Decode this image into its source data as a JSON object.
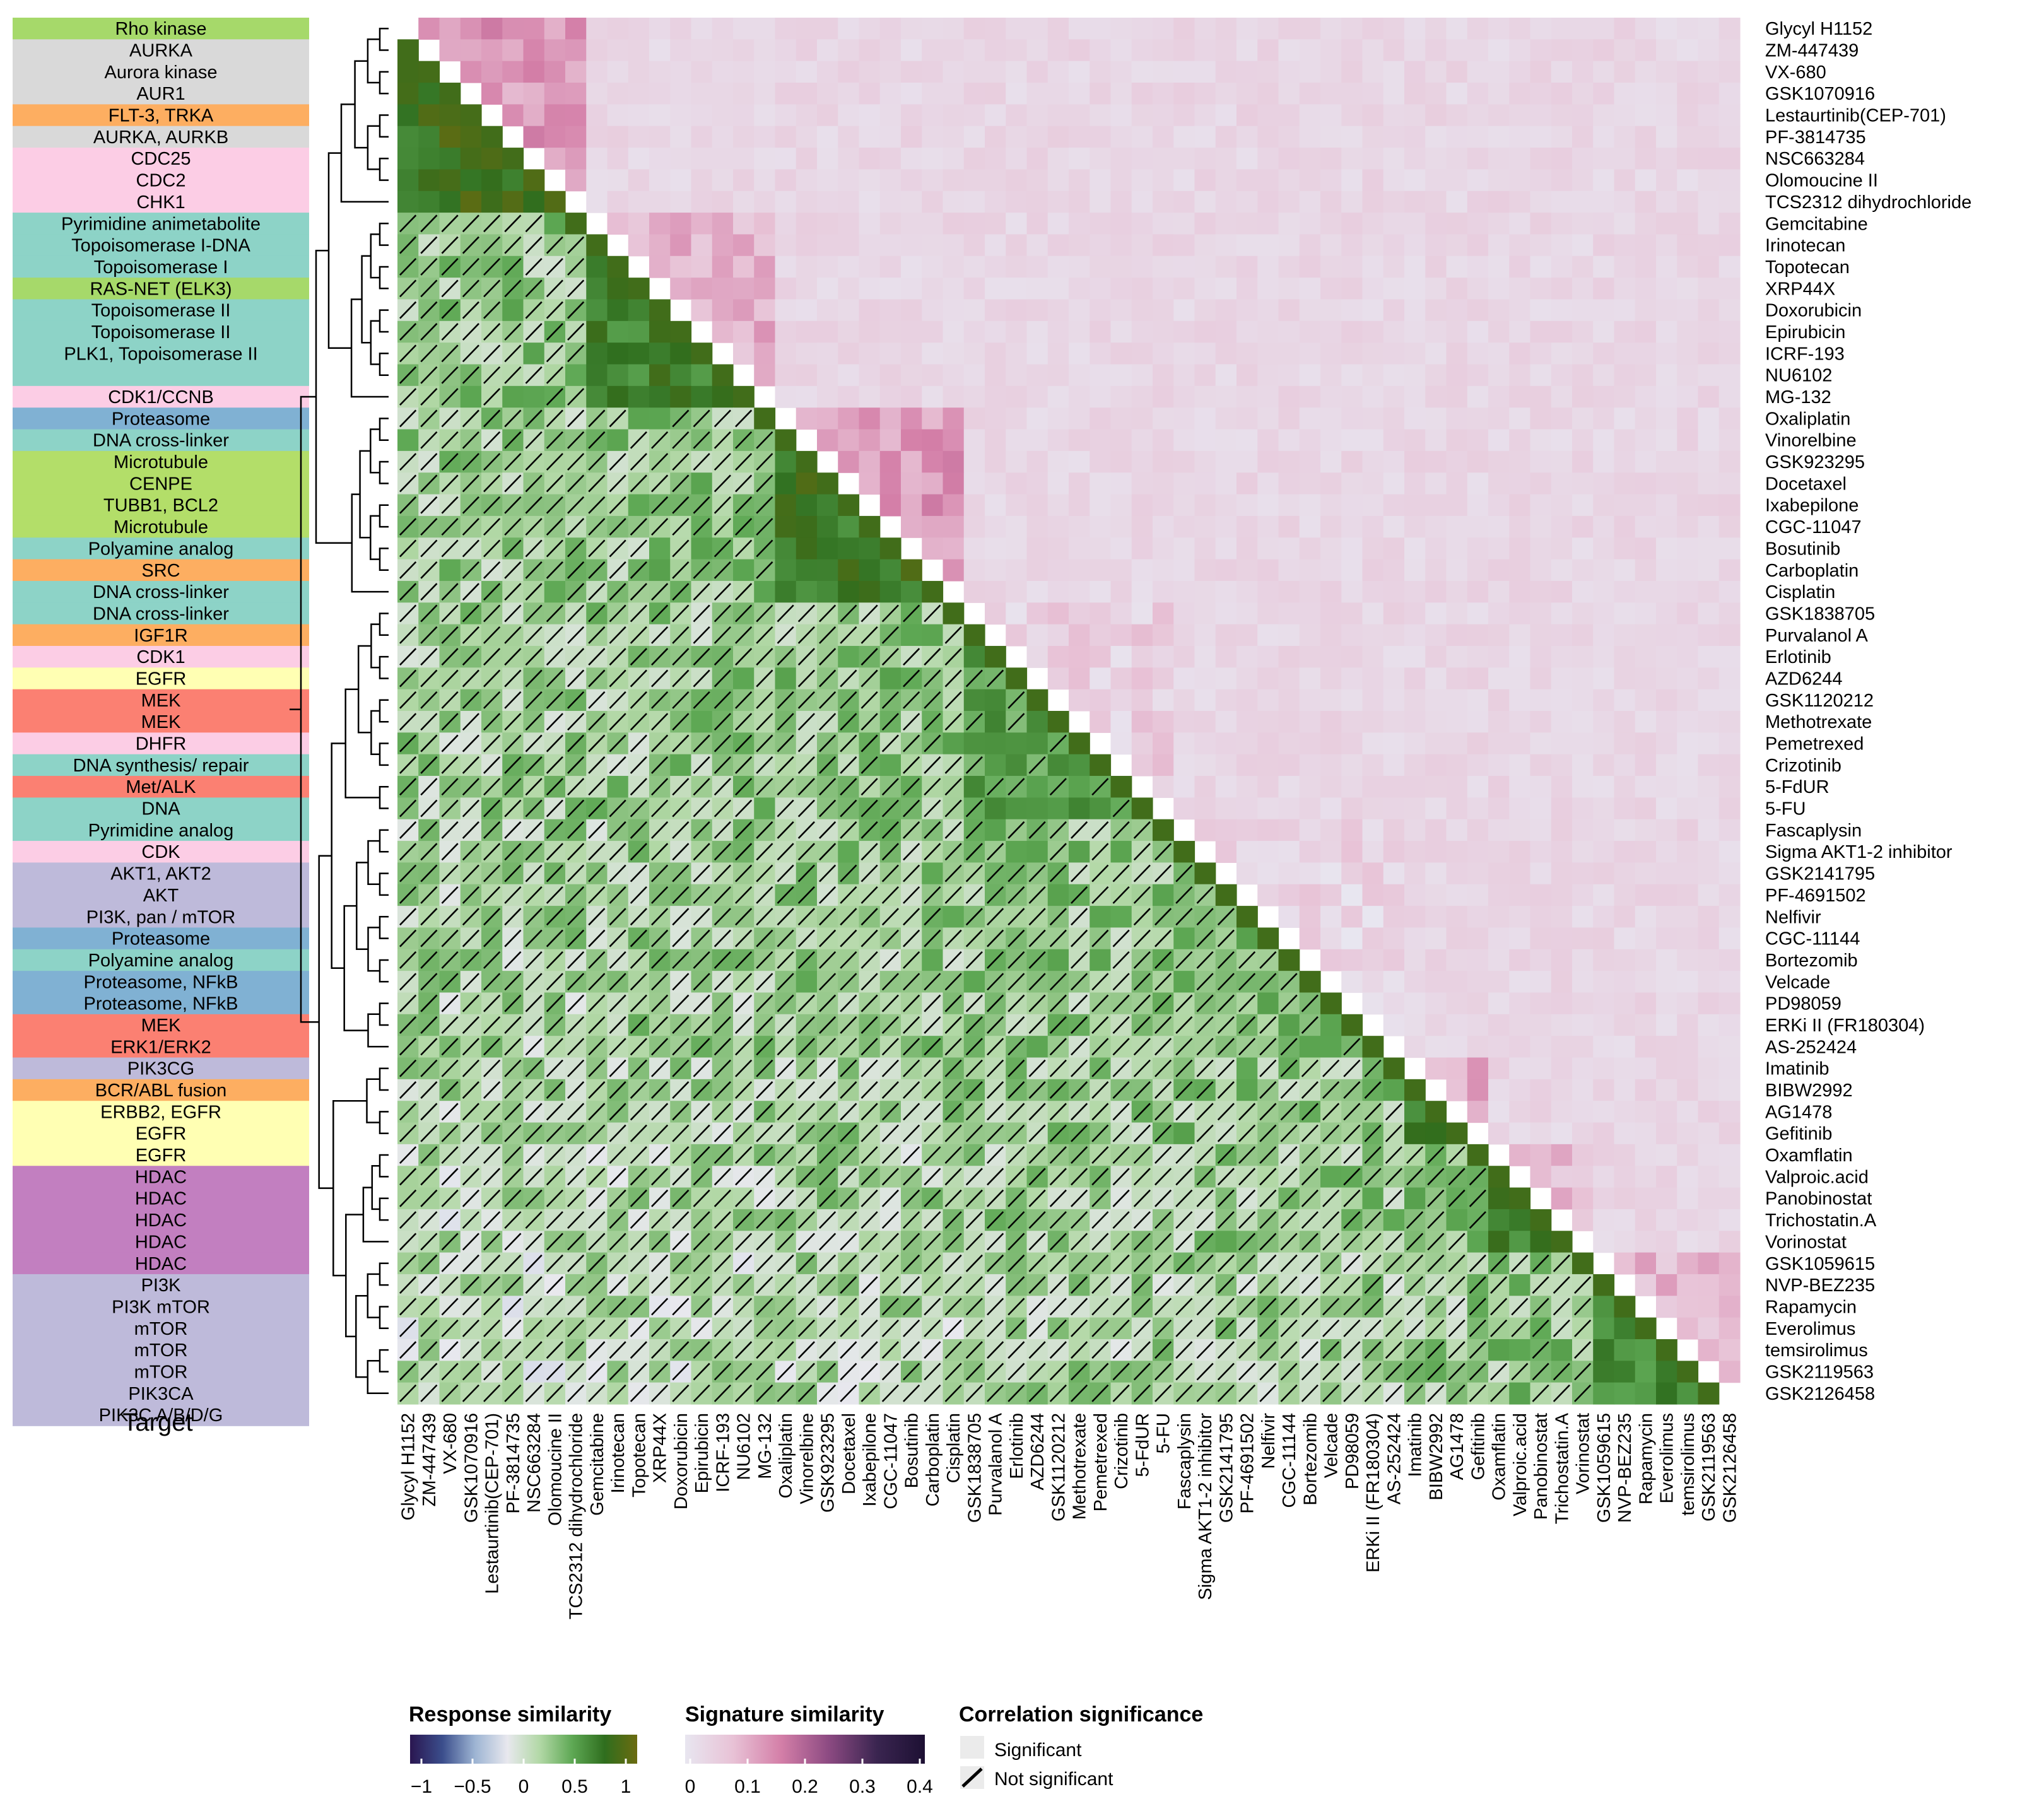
{
  "chart_data": {
    "type": "heatmap",
    "description_text": "Lower triangle: response similarity; upper triangle: signature similarity; hatched cells: correlation not significant",
    "drugs": [
      "Glycyl H1152",
      "ZM-447439",
      "VX-680",
      "GSK1070916",
      "Lestaurtinib(CEP-701)",
      "PF-3814735",
      "NSC663284",
      "Olomoucine II",
      "TCS2312 dihydrochloride",
      "Gemcitabine",
      "Irinotecan",
      "Topotecan",
      "XRP44X",
      "Doxorubicin",
      "Epirubicin",
      "ICRF-193",
      "NU6102",
      "MG-132",
      "Oxaliplatin",
      "Vinorelbine",
      "GSK923295",
      "Docetaxel",
      "Ixabepilone",
      "CGC-11047",
      "Bosutinib",
      "Carboplatin",
      "Cisplatin",
      "GSK1838705",
      "Purvalanol A",
      "Erlotinib",
      "AZD6244",
      "GSK1120212",
      "Methotrexate",
      "Pemetrexed",
      "Crizotinib",
      "5-FdUR",
      "5-FU",
      "Fascaplysin",
      "Sigma AKT1-2 inhibitor",
      "GSK2141795",
      "PF-4691502",
      "Nelfivir",
      "CGC-11144",
      "Bortezomib",
      "Velcade",
      "PD98059",
      "ERKi II (FR180304)",
      "AS-252424",
      "Imatinib",
      "BIBW2992",
      "AG1478",
      "Gefitinib",
      "Oxamflatin",
      "Valproic.acid",
      "Panobinostat",
      "Trichostatin.A",
      "Vorinostat",
      "GSK1059615",
      "NVP-BEZ235",
      "Rapamycin",
      "Everolimus",
      "temsirolimus",
      "GSK2119563",
      "GSK2126458"
    ],
    "target_blocks": [
      {
        "label": "Rho kinase",
        "rows": 1,
        "color": "#a6d96a"
      },
      {
        "label": "AURKA",
        "rows": 1,
        "color": "#d9d9d9"
      },
      {
        "label": "Aurora kinase",
        "rows": 1,
        "color": "#d9d9d9"
      },
      {
        "label": "AUR1",
        "rows": 1,
        "color": "#d9d9d9"
      },
      {
        "label": "FLT-3, TRKA",
        "rows": 1,
        "color": "#fdae61"
      },
      {
        "label": "AURKA, AURKB",
        "rows": 1,
        "color": "#d9d9d9"
      },
      {
        "label": "CDC25",
        "rows": 1,
        "color": "#fccde5"
      },
      {
        "label": "CDC2",
        "rows": 1,
        "color": "#fccde5"
      },
      {
        "label": "CHK1",
        "rows": 1,
        "color": "#fccde5"
      },
      {
        "label": "Pyrimidine animetabolite",
        "rows": 1,
        "color": "#8dd3c7"
      },
      {
        "label": "Topoisomerase I-DNA",
        "rows": 1,
        "color": "#8dd3c7"
      },
      {
        "label": "Topoisomerase I",
        "rows": 1,
        "color": "#8dd3c7"
      },
      {
        "label": "RAS-NET (ELK3)",
        "rows": 1,
        "color": "#a6d96a"
      },
      {
        "label": "Topoisomerase II",
        "rows": 1,
        "color": "#8dd3c7"
      },
      {
        "label": "Topoisomerase II",
        "rows": 1,
        "color": "#8dd3c7"
      },
      {
        "label": "PLK1, Topoisomerase II",
        "rows": 1,
        "color": "#8dd3c7"
      },
      {
        "label": "",
        "rows": 1,
        "color": "#8dd3c7"
      },
      {
        "label": "CDK1/CCNB",
        "rows": 1,
        "color": "#fccde5"
      },
      {
        "label": "Proteasome",
        "rows": 1,
        "color": "#80b1d3"
      },
      {
        "label": "DNA cross-linker",
        "rows": 1,
        "color": "#8dd3c7"
      },
      {
        "label": "Microtubule",
        "rows": 1,
        "color": "#b3de69"
      },
      {
        "label": "CENPE",
        "rows": 1,
        "color": "#b3de69"
      },
      {
        "label": "TUBB1, BCL2",
        "rows": 1,
        "color": "#b3de69"
      },
      {
        "label": "Microtubule",
        "rows": 1,
        "color": "#b3de69"
      },
      {
        "label": "Polyamine analog",
        "rows": 1,
        "color": "#8dd3c7"
      },
      {
        "label": "SRC",
        "rows": 1,
        "color": "#fdae61"
      },
      {
        "label": "DNA cross-linker",
        "rows": 1,
        "color": "#8dd3c7"
      },
      {
        "label": "DNA cross-linker",
        "rows": 1,
        "color": "#8dd3c7"
      },
      {
        "label": "IGF1R",
        "rows": 1,
        "color": "#fdae61"
      },
      {
        "label": "CDK1",
        "rows": 1,
        "color": "#fccde5"
      },
      {
        "label": "EGFR",
        "rows": 1,
        "color": "#ffffb3"
      },
      {
        "label": "MEK",
        "rows": 1,
        "color": "#fb8072"
      },
      {
        "label": "MEK",
        "rows": 1,
        "color": "#fb8072"
      },
      {
        "label": "DHFR",
        "rows": 1,
        "color": "#fccde5"
      },
      {
        "label": "DNA synthesis/ repair",
        "rows": 1,
        "color": "#8dd3c7"
      },
      {
        "label": "Met/ALK",
        "rows": 1,
        "color": "#fb8072"
      },
      {
        "label": "DNA",
        "rows": 1,
        "color": "#8dd3c7"
      },
      {
        "label": "Pyrimidine analog",
        "rows": 1,
        "color": "#8dd3c7"
      },
      {
        "label": "CDK",
        "rows": 1,
        "color": "#fccde5"
      },
      {
        "label": "AKT1, AKT2",
        "rows": 1,
        "color": "#bebada"
      },
      {
        "label": "AKT",
        "rows": 1,
        "color": "#bebada"
      },
      {
        "label": "PI3K, pan / mTOR",
        "rows": 1,
        "color": "#bebada"
      },
      {
        "label": "Proteasome",
        "rows": 1,
        "color": "#80b1d3"
      },
      {
        "label": "Polyamine analog",
        "rows": 1,
        "color": "#8dd3c7"
      },
      {
        "label": "Proteasome, NFkB",
        "rows": 1,
        "color": "#80b1d3"
      },
      {
        "label": "Proteasome, NFkB",
        "rows": 1,
        "color": "#80b1d3"
      },
      {
        "label": "MEK",
        "rows": 1,
        "color": "#fb8072"
      },
      {
        "label": "ERK1/ERK2",
        "rows": 1,
        "color": "#fb8072"
      },
      {
        "label": "PIK3CG",
        "rows": 1,
        "color": "#bebada"
      },
      {
        "label": "BCR/ABL fusion",
        "rows": 1,
        "color": "#fdae61"
      },
      {
        "label": "ERBB2, EGFR",
        "rows": 1,
        "color": "#ffffb3"
      },
      {
        "label": "EGFR",
        "rows": 1,
        "color": "#ffffb3"
      },
      {
        "label": "EGFR",
        "rows": 1,
        "color": "#ffffb3"
      },
      {
        "label": "HDAC",
        "rows": 1,
        "color": "#c27fc0"
      },
      {
        "label": "HDAC",
        "rows": 1,
        "color": "#c27fc0"
      },
      {
        "label": "HDAC",
        "rows": 1,
        "color": "#c27fc0"
      },
      {
        "label": "HDAC",
        "rows": 1,
        "color": "#c27fc0"
      },
      {
        "label": "HDAC",
        "rows": 1,
        "color": "#c27fc0"
      },
      {
        "label": "PI3K",
        "rows": 1,
        "color": "#bebada"
      },
      {
        "label": "PI3K mTOR",
        "rows": 1,
        "color": "#bebada"
      },
      {
        "label": "mTOR",
        "rows": 1,
        "color": "#bebada"
      },
      {
        "label": "mTOR",
        "rows": 1,
        "color": "#bebada"
      },
      {
        "label": "mTOR",
        "rows": 1,
        "color": "#bebada"
      },
      {
        "label": "PIK3CA",
        "rows": 1,
        "color": "#bebada"
      },
      {
        "label": "PIK3C A/B/D/G",
        "rows": 1,
        "color": "#bebada"
      }
    ],
    "target_axis_title": "Target",
    "lower_triangle": "Response similarity",
    "upper_triangle": "Signature similarity",
    "legend": {
      "response": {
        "title": "Response similarity",
        "ticks": [
          "−1",
          "−0.5",
          "0",
          "0.5",
          "1"
        ],
        "range": [
          -1,
          1
        ],
        "colors": [
          "#2a1650",
          "#3b4e8c",
          "#9db4d3",
          "#e8e8ee",
          "#b2d8a6",
          "#5ea854",
          "#2f6e1e",
          "#6b6b10"
        ]
      },
      "signature": {
        "title": "Signature similarity",
        "ticks": [
          "0",
          "0.1",
          "0.2",
          "0.3",
          "0.4"
        ],
        "range": [
          0,
          0.4
        ],
        "colors": [
          "#e8e6f0",
          "#e8c2d6",
          "#d47fa8",
          "#8c4a82",
          "#3a2550",
          "#1d1033"
        ]
      },
      "significance": {
        "title": "Correlation significance",
        "items": [
          "Significant",
          "Not significant"
        ]
      }
    },
    "block_structure": [
      {
        "from": 0,
        "to": 8,
        "response": 0.75,
        "signature": 0.12
      },
      {
        "from": 9,
        "to": 17,
        "response": 0.65,
        "signature": 0.09
      },
      {
        "from": 18,
        "to": 26,
        "response": 0.7,
        "signature": 0.12
      },
      {
        "from": 27,
        "to": 36,
        "response": 0.45,
        "signature": 0.04
      },
      {
        "from": 37,
        "to": 47,
        "response": 0.3,
        "signature": 0.03
      },
      {
        "from": 48,
        "to": 51,
        "response": 0.6,
        "signature": 0.1
      },
      {
        "from": 52,
        "to": 56,
        "response": 0.65,
        "signature": 0.07
      },
      {
        "from": 57,
        "to": 63,
        "response": 0.6,
        "signature": 0.08
      }
    ]
  }
}
